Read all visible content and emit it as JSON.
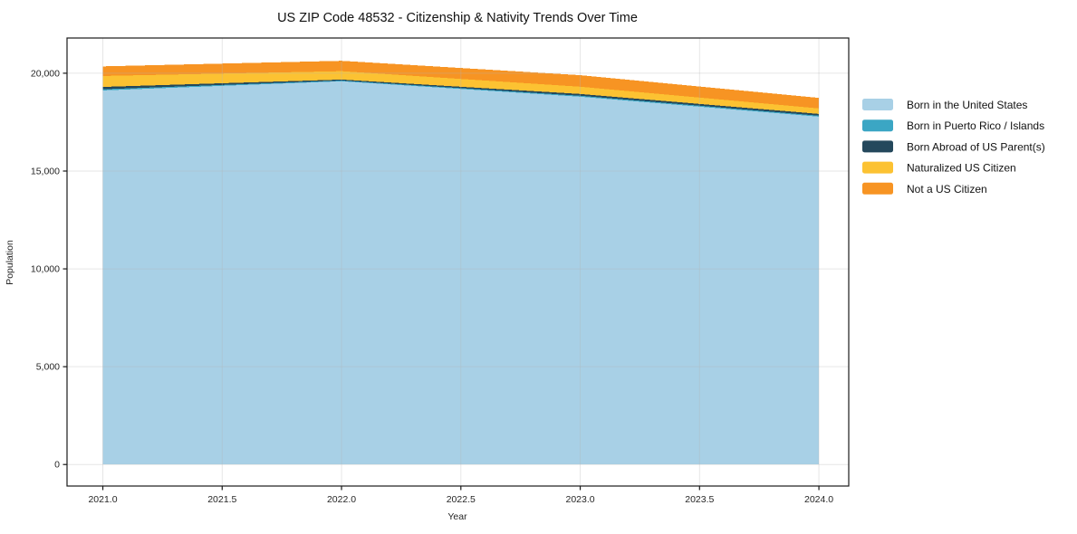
{
  "chart_data": {
    "type": "area",
    "stacked": true,
    "title": "US ZIP Code 48532 - Citizenship & Nativity Trends Over Time",
    "xlabel": "Year",
    "ylabel": "Population",
    "x": [
      2021,
      2022,
      2023,
      2024
    ],
    "series": [
      {
        "name": "Born in the United States",
        "color": "#a8d0e6",
        "values": [
          19120,
          19590,
          18800,
          17780
        ]
      },
      {
        "name": "Born in Puerto Rico / Islands",
        "color": "#3ba6c4",
        "values": [
          60,
          35,
          50,
          50
        ]
      },
      {
        "name": "Born Abroad of US Parent(s)",
        "color": "#24485c",
        "values": [
          120,
          50,
          90,
          90
        ]
      },
      {
        "name": "Naturalized US Citizen",
        "color": "#fcc232",
        "values": [
          560,
          430,
          370,
          280
        ]
      },
      {
        "name": "Not a US Citizen",
        "color": "#f79423",
        "values": [
          490,
          530,
          590,
          540
        ]
      }
    ],
    "totals": [
      20350,
      20635,
      19900,
      18740
    ],
    "xlim": [
      2020.85,
      2024.125
    ],
    "ylim": [
      -1100,
      21800
    ],
    "x_ticks": [
      {
        "value": 2021.0,
        "label": "2021.0"
      },
      {
        "value": 2021.5,
        "label": "2021.5"
      },
      {
        "value": 2022.0,
        "label": "2022.0"
      },
      {
        "value": 2022.5,
        "label": "2022.5"
      },
      {
        "value": 2023.0,
        "label": "2023.0"
      },
      {
        "value": 2023.5,
        "label": "2023.5"
      },
      {
        "value": 2024.0,
        "label": "2024.0"
      }
    ],
    "y_ticks": [
      {
        "value": 0,
        "label": "0"
      },
      {
        "value": 5000,
        "label": "5,000"
      },
      {
        "value": 10000,
        "label": "10,000"
      },
      {
        "value": 15000,
        "label": "15,000"
      },
      {
        "value": 20000,
        "label": "20,000"
      }
    ],
    "grid": true,
    "legend_position": "right-outside"
  },
  "colors": {
    "spine": "#1a1a1a",
    "grid": "#b4b4b4",
    "background": "#ffffff"
  }
}
